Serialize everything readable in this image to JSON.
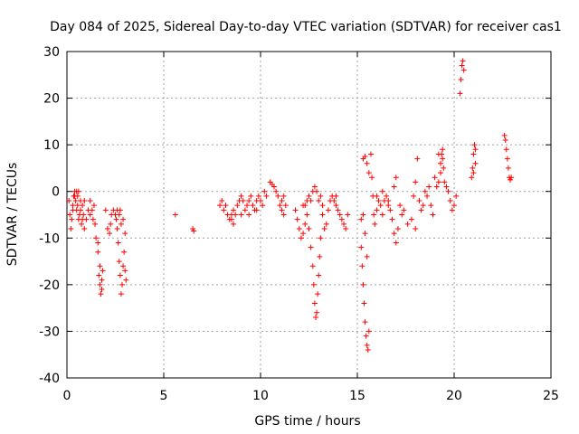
{
  "chart_data": {
    "type": "scatter",
    "title": "Day 084 of 2025, Sidereal Day-to-day VTEC variation (SDTVAR) for receiver cas1",
    "xlabel": "GPS time / hours",
    "ylabel": "SDTVAR / TECUs",
    "xlim": [
      0,
      25
    ],
    "ylim": [
      -40,
      30
    ],
    "xticks": [
      "0",
      "5",
      "10",
      "15",
      "20",
      "25"
    ],
    "yticks": [
      "30",
      "20",
      "10",
      "0",
      "-10",
      "-20",
      "-30",
      "-40"
    ],
    "grid": true,
    "marker": "+",
    "series": [
      {
        "name": "cas1",
        "color": "#ff0000",
        "points": [
          [
            0.1,
            -2
          ],
          [
            0.15,
            -5
          ],
          [
            0.2,
            -8
          ],
          [
            0.25,
            -6
          ],
          [
            0.3,
            -3
          ],
          [
            0.35,
            -1
          ],
          [
            0.4,
            0
          ],
          [
            0.45,
            -2
          ],
          [
            0.5,
            -4
          ],
          [
            0.55,
            -3
          ],
          [
            0.6,
            -6
          ],
          [
            0.65,
            -5
          ],
          [
            0.7,
            -4
          ],
          [
            0.75,
            -7
          ],
          [
            0.8,
            -6
          ],
          [
            0.85,
            -5
          ],
          [
            0.9,
            -8
          ],
          [
            0.3,
            -4
          ],
          [
            0.4,
            -1
          ],
          [
            0.5,
            0
          ],
          [
            0.55,
            -1
          ],
          [
            0.6,
            0
          ],
          [
            0.7,
            -2
          ],
          [
            0.8,
            -3
          ],
          [
            0.9,
            -2
          ],
          [
            1.0,
            -6
          ],
          [
            1.1,
            -4
          ],
          [
            1.2,
            -2
          ],
          [
            1.3,
            -4
          ],
          [
            1.4,
            -3
          ],
          [
            1.2,
            -5
          ],
          [
            1.35,
            -6
          ],
          [
            1.45,
            -7
          ],
          [
            1.5,
            -10
          ],
          [
            1.6,
            -13
          ],
          [
            1.65,
            -18
          ],
          [
            1.7,
            -20
          ],
          [
            1.75,
            -22
          ],
          [
            1.8,
            -19
          ],
          [
            1.85,
            -17
          ],
          [
            1.6,
            -11
          ],
          [
            1.7,
            -16
          ],
          [
            1.8,
            -21
          ],
          [
            2.0,
            -4
          ],
          [
            2.1,
            -8
          ],
          [
            2.2,
            -9
          ],
          [
            2.25,
            -7
          ],
          [
            2.3,
            -5
          ],
          [
            2.4,
            -4
          ],
          [
            2.5,
            -5
          ],
          [
            2.55,
            -6
          ],
          [
            2.6,
            -8
          ],
          [
            2.65,
            -11
          ],
          [
            2.7,
            -15
          ],
          [
            2.75,
            -18
          ],
          [
            2.8,
            -22
          ],
          [
            2.85,
            -20
          ],
          [
            2.9,
            -16
          ],
          [
            2.95,
            -13
          ],
          [
            3.0,
            -17
          ],
          [
            3.05,
            -19
          ],
          [
            2.7,
            -5
          ],
          [
            2.8,
            -7
          ],
          [
            2.9,
            -6
          ],
          [
            3.0,
            -9
          ],
          [
            2.6,
            -4
          ],
          [
            2.75,
            -4
          ],
          [
            5.6,
            -5
          ],
          [
            6.5,
            -8
          ],
          [
            6.55,
            -8.5
          ],
          [
            7.9,
            -3
          ],
          [
            8.0,
            -2
          ],
          [
            8.1,
            -4
          ],
          [
            8.2,
            -3
          ],
          [
            8.3,
            -5
          ],
          [
            8.4,
            -6
          ],
          [
            8.5,
            -5
          ],
          [
            8.6,
            -4
          ],
          [
            8.7,
            -5
          ],
          [
            8.8,
            -3
          ],
          [
            8.9,
            -2
          ],
          [
            9.0,
            -1
          ],
          [
            9.1,
            -2
          ],
          [
            9.2,
            -4
          ],
          [
            9.3,
            -3
          ],
          [
            9.4,
            -2
          ],
          [
            9.5,
            -1
          ],
          [
            9.6,
            -3
          ],
          [
            9.7,
            -4
          ],
          [
            9.8,
            -2
          ],
          [
            9.9,
            -1
          ],
          [
            10.0,
            -2
          ],
          [
            10.1,
            -3
          ],
          [
            10.2,
            0
          ],
          [
            10.3,
            -1
          ],
          [
            8.5,
            -6
          ],
          [
            8.6,
            -7
          ],
          [
            9.0,
            -5
          ],
          [
            9.4,
            -5
          ],
          [
            9.8,
            -4
          ],
          [
            10.5,
            2
          ],
          [
            10.6,
            1.5
          ],
          [
            10.7,
            1
          ],
          [
            10.8,
            0
          ],
          [
            10.9,
            -1
          ],
          [
            11.0,
            -3
          ],
          [
            11.1,
            -2
          ],
          [
            11.2,
            -1
          ],
          [
            11.3,
            -3
          ],
          [
            11.1,
            -4
          ],
          [
            11.2,
            -5
          ],
          [
            11.8,
            -4
          ],
          [
            11.9,
            -6
          ],
          [
            12.0,
            -8
          ],
          [
            12.1,
            -10
          ],
          [
            12.2,
            -9
          ],
          [
            12.3,
            -7
          ],
          [
            12.4,
            -5
          ],
          [
            12.5,
            -8
          ],
          [
            12.6,
            -12
          ],
          [
            12.7,
            -16
          ],
          [
            12.75,
            -20
          ],
          [
            12.8,
            -24
          ],
          [
            12.85,
            -27
          ],
          [
            12.9,
            -26
          ],
          [
            12.95,
            -22
          ],
          [
            13.0,
            -18
          ],
          [
            13.05,
            -14
          ],
          [
            13.1,
            -10
          ],
          [
            12.3,
            -3
          ],
          [
            12.4,
            -2
          ],
          [
            12.5,
            -1
          ],
          [
            12.6,
            -2
          ],
          [
            12.7,
            0
          ],
          [
            12.8,
            1
          ],
          [
            12.9,
            0
          ],
          [
            13.0,
            -2
          ],
          [
            13.1,
            -1
          ],
          [
            13.2,
            -5
          ],
          [
            13.3,
            -8
          ],
          [
            13.4,
            -7
          ],
          [
            13.5,
            -4
          ],
          [
            13.6,
            -2
          ],
          [
            13.7,
            -1
          ],
          [
            13.8,
            -2
          ],
          [
            13.9,
            -3
          ],
          [
            14.0,
            -4
          ],
          [
            14.1,
            -5
          ],
          [
            14.2,
            -6
          ],
          [
            14.3,
            -7
          ],
          [
            14.4,
            -8
          ],
          [
            14.5,
            -5
          ],
          [
            12.2,
            -3
          ],
          [
            13.2,
            -3
          ],
          [
            13.9,
            -1
          ],
          [
            15.2,
            -12
          ],
          [
            15.25,
            -16
          ],
          [
            15.3,
            -20
          ],
          [
            15.35,
            -24
          ],
          [
            15.4,
            -28
          ],
          [
            15.45,
            -31
          ],
          [
            15.5,
            -33
          ],
          [
            15.55,
            -34
          ],
          [
            15.6,
            -30
          ],
          [
            15.3,
            -5
          ],
          [
            15.4,
            -9
          ],
          [
            15.5,
            -14
          ],
          [
            15.2,
            -6
          ],
          [
            15.3,
            7
          ],
          [
            15.4,
            7.5
          ],
          [
            15.5,
            6
          ],
          [
            15.6,
            4
          ],
          [
            15.7,
            8
          ],
          [
            15.75,
            3
          ],
          [
            15.8,
            -1
          ],
          [
            15.85,
            -5
          ],
          [
            15.9,
            -7
          ],
          [
            16.0,
            -4
          ],
          [
            16.1,
            -2
          ],
          [
            16.2,
            -3
          ],
          [
            16.3,
            -5
          ],
          [
            16.4,
            -2
          ],
          [
            16.5,
            -1
          ],
          [
            16.6,
            -3
          ],
          [
            16.7,
            -4
          ],
          [
            16.8,
            -6
          ],
          [
            16.9,
            -9
          ],
          [
            17.0,
            -11
          ],
          [
            17.1,
            -8
          ],
          [
            16.0,
            -1
          ],
          [
            16.3,
            0
          ],
          [
            16.6,
            -2
          ],
          [
            16.9,
            1
          ],
          [
            17.0,
            3
          ],
          [
            17.2,
            -3
          ],
          [
            17.3,
            -5
          ],
          [
            17.4,
            -4
          ],
          [
            17.6,
            -7
          ],
          [
            17.8,
            -6
          ],
          [
            18.0,
            -8
          ],
          [
            17.9,
            -1
          ],
          [
            18.0,
            2
          ],
          [
            18.1,
            7
          ],
          [
            18.2,
            -2
          ],
          [
            18.3,
            -4
          ],
          [
            18.4,
            -3
          ],
          [
            18.5,
            0
          ],
          [
            18.6,
            -1
          ],
          [
            18.7,
            1
          ],
          [
            18.8,
            -3
          ],
          [
            18.9,
            -5
          ],
          [
            19.0,
            3
          ],
          [
            19.1,
            1
          ],
          [
            19.2,
            2
          ],
          [
            19.3,
            6
          ],
          [
            19.35,
            8
          ],
          [
            19.4,
            9
          ],
          [
            19.45,
            5
          ],
          [
            19.5,
            2
          ],
          [
            19.6,
            1
          ],
          [
            19.7,
            0
          ],
          [
            19.8,
            -2
          ],
          [
            19.9,
            -4
          ],
          [
            20.0,
            -3
          ],
          [
            20.1,
            -1
          ],
          [
            19.2,
            8
          ],
          [
            19.3,
            4
          ],
          [
            19.4,
            7
          ],
          [
            20.3,
            21
          ],
          [
            20.35,
            24
          ],
          [
            20.4,
            27
          ],
          [
            20.45,
            28
          ],
          [
            20.5,
            26
          ],
          [
            20.9,
            3
          ],
          [
            20.95,
            5
          ],
          [
            21.0,
            8
          ],
          [
            21.05,
            10
          ],
          [
            21.1,
            9
          ],
          [
            21.0,
            4
          ],
          [
            21.1,
            6
          ],
          [
            22.6,
            12
          ],
          [
            22.65,
            11
          ],
          [
            22.7,
            9
          ],
          [
            22.75,
            7
          ],
          [
            22.8,
            5
          ],
          [
            22.85,
            3
          ],
          [
            22.9,
            2.5
          ],
          [
            22.95,
            3
          ]
        ]
      }
    ]
  }
}
